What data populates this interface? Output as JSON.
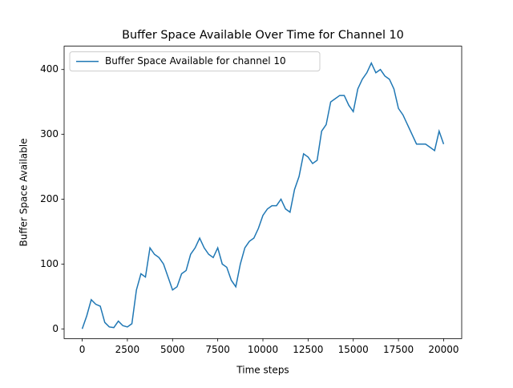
{
  "chart_data": {
    "type": "line",
    "title": "Buffer Space Available Over Time for Channel 10",
    "xlabel": "Time steps",
    "ylabel": "Buffer Space Available",
    "x": [
      0,
      250,
      500,
      750,
      1000,
      1250,
      1500,
      1750,
      2000,
      2250,
      2500,
      2750,
      3000,
      3250,
      3500,
      3750,
      4000,
      4250,
      4500,
      4750,
      5000,
      5250,
      5500,
      5750,
      6000,
      6250,
      6500,
      6750,
      7000,
      7250,
      7500,
      7750,
      8000,
      8250,
      8500,
      8750,
      9000,
      9250,
      9500,
      9750,
      10000,
      10250,
      10500,
      10750,
      11000,
      11250,
      11500,
      11750,
      12000,
      12250,
      12500,
      12750,
      13000,
      13250,
      13500,
      13750,
      14000,
      14250,
      14500,
      14750,
      15000,
      15250,
      15500,
      15750,
      16000,
      16250,
      16500,
      16750,
      17000,
      17250,
      17500,
      17750,
      18000,
      18250,
      18500,
      18750,
      19000,
      19250,
      19500,
      19750,
      20000
    ],
    "series": [
      {
        "name": "Buffer Space Available for channel 10",
        "color": "#1f77b4",
        "values": [
          0,
          20,
          45,
          38,
          35,
          10,
          3,
          2,
          12,
          5,
          3,
          8,
          60,
          85,
          80,
          125,
          115,
          110,
          100,
          80,
          60,
          65,
          85,
          90,
          115,
          125,
          140,
          125,
          115,
          110,
          125,
          100,
          95,
          75,
          65,
          100,
          125,
          135,
          140,
          155,
          175,
          185,
          190,
          190,
          200,
          185,
          180,
          215,
          235,
          270,
          265,
          255,
          260,
          305,
          315,
          350,
          355,
          360,
          360,
          345,
          335,
          370,
          385,
          395,
          410,
          395,
          400,
          390,
          385,
          370,
          340,
          330,
          315,
          300,
          285,
          285,
          285,
          280,
          275,
          305,
          285
        ]
      }
    ],
    "xlim": [
      -1000,
      21000
    ],
    "ylim": [
      -15,
      436
    ],
    "xticks": [
      0,
      2500,
      5000,
      7500,
      10000,
      12500,
      15000,
      17500,
      20000
    ],
    "yticks": [
      0,
      100,
      200,
      300,
      400
    ],
    "legend": "upper left",
    "grid": false
  }
}
